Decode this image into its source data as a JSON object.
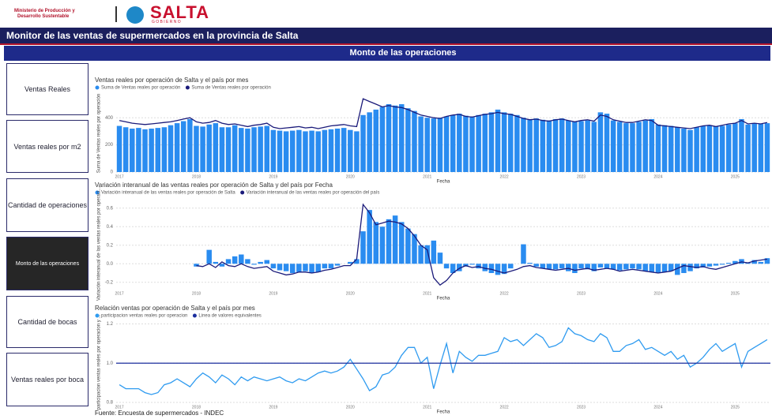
{
  "header": {
    "ministry": [
      "Ministerio de Producción y",
      "Desarrollo Sustentable"
    ],
    "logo": "SALTA",
    "logo_sub": "G O B I E R N O",
    "title": "Monitor de las ventas de supermercados en la provincia de Salta"
  },
  "section_title": "Monto de las operaciones",
  "nav": [
    "Ventas Reales",
    "Ventas reales por m2",
    "Cantidad de operaciones",
    "Monto de las operaciones",
    "Cantidad de bocas",
    "Ventas reales por boca"
  ],
  "footer": "Fuente: Encuesta de supermercados - INDEC",
  "chart_data": [
    {
      "type": "combo",
      "title": "Ventas reales por operación de Salta y el país por mes",
      "xlabel": "Fecha",
      "ylabel": "Suma de Ventas reales por operación",
      "categories": [
        "2017",
        null,
        null,
        null,
        null,
        null,
        null,
        null,
        null,
        null,
        null,
        null,
        "2018",
        null,
        null,
        null,
        null,
        null,
        null,
        null,
        null,
        null,
        null,
        null,
        "2019",
        null,
        null,
        null,
        null,
        null,
        null,
        null,
        null,
        null,
        null,
        null,
        "2020",
        null,
        null,
        null,
        null,
        null,
        null,
        null,
        null,
        null,
        null,
        null,
        "2021",
        null,
        null,
        null,
        null,
        null,
        null,
        null,
        null,
        null,
        null,
        null,
        "2022",
        null,
        null,
        null,
        null,
        null,
        null,
        null,
        null,
        null,
        null,
        null,
        "2023",
        null,
        null,
        null,
        null,
        null,
        null,
        null,
        null,
        null,
        null,
        null,
        "2024",
        null,
        null,
        null,
        null,
        null,
        null,
        null,
        null,
        null,
        null,
        null,
        "2025",
        null,
        null,
        null,
        null,
        null
      ],
      "ylim": [
        0,
        570
      ],
      "yticks": [
        0,
        200,
        400
      ],
      "grid": true,
      "series": [
        {
          "name": "Suma de Ventas reales por operación",
          "kind": "bar",
          "color": "#2a8cf0",
          "values": [
            340,
            330,
            320,
            325,
            315,
            320,
            325,
            330,
            345,
            360,
            375,
            390,
            340,
            335,
            350,
            360,
            330,
            330,
            345,
            325,
            320,
            330,
            335,
            340,
            310,
            305,
            300,
            305,
            310,
            300,
            305,
            300,
            310,
            315,
            320,
            325,
            310,
            300,
            420,
            440,
            460,
            480,
            500,
            490,
            500,
            470,
            450,
            410,
            400,
            395,
            400,
            410,
            420,
            430,
            415,
            410,
            420,
            430,
            440,
            460,
            440,
            430,
            420,
            400,
            390,
            395,
            385,
            380,
            390,
            395,
            380,
            370,
            375,
            380,
            370,
            440,
            430,
            380,
            370,
            360,
            360,
            370,
            380,
            390,
            350,
            345,
            340,
            330,
            320,
            310,
            330,
            340,
            345,
            335,
            340,
            350,
            360,
            390,
            350,
            360,
            355,
            360
          ]
        },
        {
          "name": "Suma de Ventas reales por operación",
          "kind": "line",
          "color": "#1a1a7a",
          "values": [
            380,
            370,
            360,
            355,
            350,
            355,
            360,
            365,
            370,
            380,
            390,
            400,
            370,
            360,
            365,
            380,
            360,
            350,
            355,
            345,
            335,
            345,
            350,
            360,
            330,
            320,
            325,
            330,
            335,
            325,
            330,
            320,
            330,
            340,
            345,
            350,
            340,
            335,
            540,
            520,
            500,
            480,
            490,
            480,
            475,
            460,
            440,
            420,
            410,
            400,
            395,
            410,
            420,
            425,
            410,
            405,
            415,
            425,
            430,
            440,
            430,
            425,
            410,
            395,
            385,
            390,
            380,
            375,
            385,
            390,
            380,
            370,
            380,
            385,
            375,
            420,
            410,
            385,
            375,
            365,
            365,
            375,
            385,
            380,
            345,
            340,
            335,
            330,
            325,
            320,
            330,
            340,
            345,
            335,
            345,
            355,
            360,
            380,
            355,
            360,
            355,
            365
          ]
        }
      ]
    },
    {
      "type": "combo",
      "title": "Variación interanual de las ventas reales por operación de Salta y del país por Fecha",
      "xlabel": "Fecha",
      "ylabel": "Variación interanual de las ventas reales por operaci...",
      "categories": [
        "2017",
        null,
        null,
        null,
        null,
        null,
        null,
        null,
        null,
        null,
        null,
        null,
        "2018",
        null,
        null,
        null,
        null,
        null,
        null,
        null,
        null,
        null,
        null,
        null,
        "2019",
        null,
        null,
        null,
        null,
        null,
        null,
        null,
        null,
        null,
        null,
        null,
        "2020",
        null,
        null,
        null,
        null,
        null,
        null,
        null,
        null,
        null,
        null,
        null,
        "2021",
        null,
        null,
        null,
        null,
        null,
        null,
        null,
        null,
        null,
        null,
        null,
        "2022",
        null,
        null,
        null,
        null,
        null,
        null,
        null,
        null,
        null,
        null,
        null,
        "2023",
        null,
        null,
        null,
        null,
        null,
        null,
        null,
        null,
        null,
        null,
        null,
        "2024",
        null,
        null,
        null,
        null,
        null,
        null,
        null,
        null,
        null,
        null,
        null,
        "2025",
        null,
        null,
        null,
        null,
        null
      ],
      "ylim": [
        -0.27,
        0.7
      ],
      "yticks": [
        -0.2,
        {
          "value": 0,
          "label": "0.0"
        },
        0.2,
        0.4,
        0.6
      ],
      "grid": true,
      "series": [
        {
          "name": "Variación interanual de las ventas reales por operación de Salta",
          "kind": "bar",
          "color": "#2a8cf0",
          "values": [
            null,
            null,
            null,
            null,
            null,
            null,
            null,
            null,
            null,
            null,
            null,
            null,
            -0.03,
            0.0,
            0.15,
            0.02,
            -0.03,
            0.05,
            0.08,
            0.1,
            0.05,
            -0.01,
            0.02,
            0.04,
            -0.05,
            -0.07,
            -0.08,
            -0.1,
            -0.09,
            -0.08,
            -0.1,
            -0.09,
            -0.05,
            -0.05,
            -0.02,
            0.0,
            0.02,
            0.05,
            0.35,
            0.58,
            0.45,
            0.4,
            0.48,
            0.52,
            0.45,
            0.38,
            0.32,
            0.2,
            0.2,
            0.25,
            0.12,
            -0.05,
            -0.1,
            -0.08,
            -0.03,
            -0.01,
            -0.05,
            -0.08,
            -0.1,
            -0.12,
            -0.11,
            -0.05,
            0.0,
            0.21,
            0.01,
            -0.03,
            -0.05,
            -0.06,
            -0.06,
            -0.05,
            -0.08,
            -0.1,
            -0.05,
            -0.06,
            -0.08,
            -0.04,
            -0.05,
            -0.06,
            -0.07,
            -0.06,
            -0.05,
            -0.06,
            -0.08,
            -0.09,
            -0.1,
            -0.09,
            -0.08,
            -0.12,
            -0.1,
            -0.08,
            -0.05,
            -0.04,
            -0.03,
            -0.02,
            -0.01,
            0.01,
            0.03,
            0.05,
            0.01,
            0.04,
            0.02,
            0.06
          ]
        },
        {
          "name": "Variación interanual de las ventas reales por operación del país",
          "kind": "line",
          "color": "#1a1a7a",
          "values": [
            null,
            null,
            null,
            null,
            null,
            null,
            null,
            null,
            null,
            null,
            null,
            null,
            -0.02,
            -0.03,
            0.0,
            -0.04,
            0.02,
            -0.02,
            -0.03,
            0.0,
            -0.03,
            -0.05,
            -0.04,
            -0.03,
            -0.08,
            -0.1,
            -0.12,
            -0.11,
            -0.09,
            -0.09,
            -0.1,
            -0.09,
            -0.07,
            -0.06,
            -0.04,
            -0.02,
            -0.02,
            0.05,
            0.64,
            0.55,
            0.42,
            0.44,
            0.46,
            0.45,
            0.43,
            0.38,
            0.3,
            0.2,
            0.15,
            -0.15,
            -0.23,
            -0.18,
            -0.1,
            -0.05,
            -0.02,
            -0.04,
            -0.03,
            -0.05,
            -0.06,
            -0.08,
            -0.1,
            -0.08,
            -0.06,
            -0.03,
            -0.02,
            -0.04,
            -0.05,
            -0.06,
            -0.07,
            -0.06,
            -0.05,
            -0.07,
            -0.06,
            -0.05,
            -0.07,
            -0.06,
            -0.05,
            -0.06,
            -0.08,
            -0.07,
            -0.06,
            -0.07,
            -0.08,
            -0.09,
            -0.1,
            -0.09,
            -0.08,
            -0.05,
            -0.02,
            -0.03,
            -0.04,
            -0.03,
            -0.05,
            -0.06,
            -0.04,
            -0.02,
            0.0,
            0.02,
            0.01,
            0.03,
            0.04,
            0.05
          ]
        }
      ]
    },
    {
      "type": "line",
      "title": "Relación ventas por operación de Salta y el país por mes",
      "xlabel": "Fecha",
      "ylabel": "participacion ventas reales por operacion y ...",
      "categories": [
        "2017",
        null,
        null,
        null,
        null,
        null,
        null,
        null,
        null,
        null,
        null,
        null,
        "2018",
        null,
        null,
        null,
        null,
        null,
        null,
        null,
        null,
        null,
        null,
        null,
        "2019",
        null,
        null,
        null,
        null,
        null,
        null,
        null,
        null,
        null,
        null,
        null,
        "2020",
        null,
        null,
        null,
        null,
        null,
        null,
        null,
        null,
        null,
        null,
        null,
        "2021",
        null,
        null,
        null,
        null,
        null,
        null,
        null,
        null,
        null,
        null,
        null,
        "2022",
        null,
        null,
        null,
        null,
        null,
        null,
        null,
        null,
        null,
        null,
        null,
        "2023",
        null,
        null,
        null,
        null,
        null,
        null,
        null,
        null,
        null,
        null,
        null,
        "2024",
        null,
        null,
        null,
        null,
        null,
        null,
        null,
        null,
        null,
        null,
        null,
        "2025",
        null,
        null,
        null,
        null,
        null
      ],
      "ylim": [
        0.8,
        1.21
      ],
      "yticks": [
        0.8,
        {
          "value": 1,
          "label": "1.0"
        },
        1.2
      ],
      "grid": true,
      "series": [
        {
          "name": "participacion ventas reales por operacion",
          "kind": "line",
          "color": "#2f9bf0",
          "values": [
            0.89,
            0.87,
            0.87,
            0.87,
            0.85,
            0.84,
            0.85,
            0.89,
            0.9,
            0.92,
            0.9,
            0.88,
            0.92,
            0.95,
            0.93,
            0.9,
            0.94,
            0.92,
            0.89,
            0.93,
            0.91,
            0.93,
            0.92,
            0.91,
            0.92,
            0.93,
            0.91,
            0.9,
            0.92,
            0.91,
            0.93,
            0.95,
            0.96,
            0.95,
            0.96,
            0.98,
            1.02,
            0.97,
            0.92,
            0.86,
            0.88,
            0.94,
            0.95,
            0.98,
            1.04,
            1.08,
            1.08,
            1.0,
            1.03,
            0.87,
            0.99,
            1.1,
            0.95,
            1.06,
            1.03,
            1.01,
            1.04,
            1.04,
            1.05,
            1.06,
            1.13,
            1.11,
            1.12,
            1.09,
            1.12,
            1.15,
            1.13,
            1.08,
            1.09,
            1.11,
            1.18,
            1.15,
            1.14,
            1.12,
            1.11,
            1.15,
            1.13,
            1.06,
            1.06,
            1.09,
            1.1,
            1.12,
            1.07,
            1.08,
            1.06,
            1.04,
            1.06,
            1.02,
            1.04,
            0.98,
            1.0,
            1.03,
            1.07,
            1.1,
            1.06,
            1.08,
            1.1,
            0.98,
            1.06,
            1.08,
            1.1,
            1.12
          ]
        }
      ],
      "hline": {
        "name": "Linea de valores equivalentes",
        "value": 1,
        "color": "#1c2f9e"
      }
    }
  ]
}
